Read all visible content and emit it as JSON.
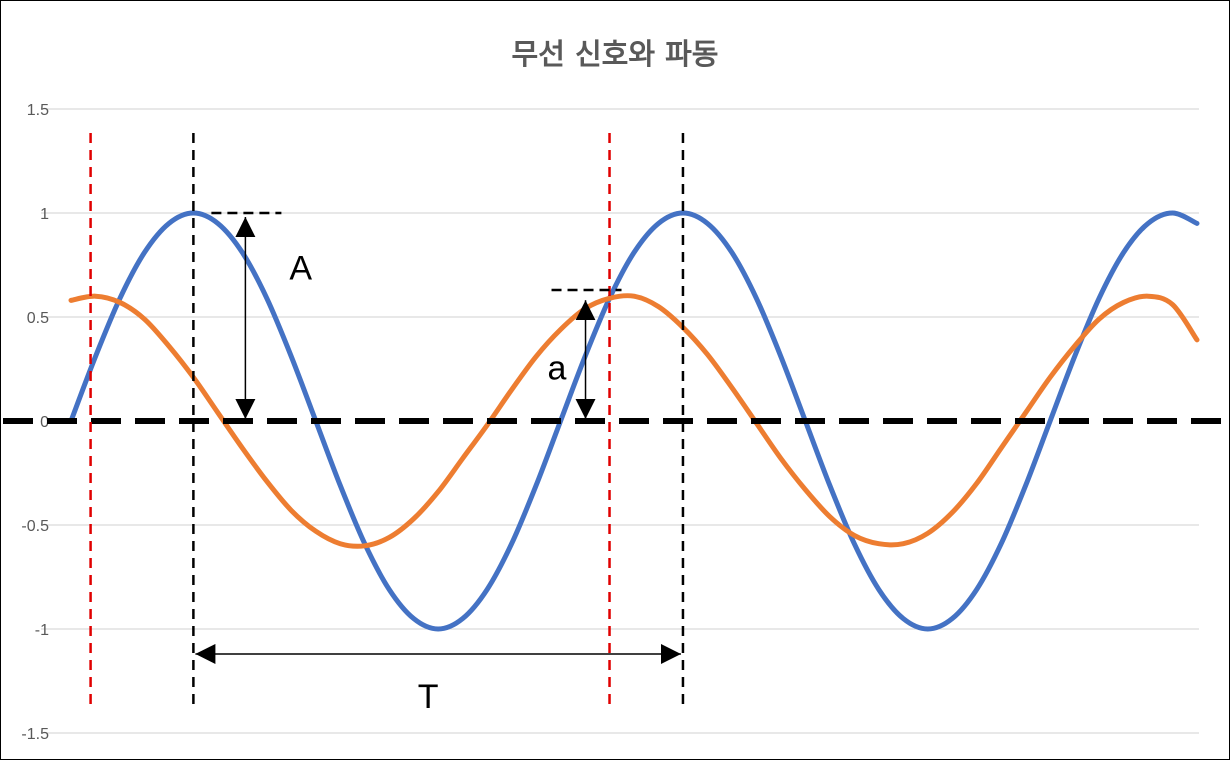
{
  "chart_data": {
    "type": "line",
    "title": "무선 신호와 파동",
    "xlabel": "",
    "ylabel": "",
    "ylim": [
      -1.5,
      1.5
    ],
    "y_ticks": [
      "1.5",
      "1",
      "0.5",
      "0",
      "-0.5",
      "-1",
      "-1.5"
    ],
    "grid": true,
    "legend": "none",
    "x": [
      0,
      0.05,
      0.1,
      0.15,
      0.2,
      0.25,
      0.3,
      0.35,
      0.4,
      0.45,
      0.5,
      0.55,
      0.6,
      0.65,
      0.7,
      0.75,
      0.8,
      0.85,
      0.9,
      0.95,
      1.0,
      1.05,
      1.1,
      1.15,
      1.2,
      1.25,
      1.3,
      1.35,
      1.4,
      1.45,
      1.5,
      1.55,
      1.6,
      1.65,
      1.7,
      1.75,
      1.8,
      1.85,
      1.9,
      1.95,
      2.0,
      2.05,
      2.1,
      2.15,
      2.2,
      2.25,
      2.3
    ],
    "series": [
      {
        "color": "#4472C4",
        "values": [
          0,
          0.31,
          0.59,
          0.81,
          0.95,
          1,
          0.95,
          0.81,
          0.59,
          0.31,
          0,
          -0.31,
          -0.59,
          -0.81,
          -0.95,
          -1,
          -0.95,
          -0.81,
          -0.59,
          -0.31,
          0,
          0.31,
          0.59,
          0.81,
          0.95,
          1,
          0.95,
          0.81,
          0.59,
          0.31,
          0,
          -0.31,
          -0.59,
          -0.81,
          -0.95,
          -1,
          -0.95,
          -0.81,
          -0.59,
          -0.31,
          0,
          0.31,
          0.59,
          0.81,
          0.95,
          1,
          0.95
        ]
      },
      {
        "color": "#ED7D31",
        "values": [
          0.58,
          0.6,
          0.57,
          0.49,
          0.36,
          0.21,
          0.04,
          -0.13,
          -0.29,
          -0.43,
          -0.53,
          -0.59,
          -0.6,
          -0.56,
          -0.47,
          -0.34,
          -0.18,
          -0.02,
          0.15,
          0.31,
          0.44,
          0.54,
          0.59,
          0.6,
          0.55,
          0.45,
          0.32,
          0.16,
          -0.01,
          -0.18,
          -0.33,
          -0.46,
          -0.55,
          -0.59,
          -0.59,
          -0.54,
          -0.44,
          -0.3,
          -0.13,
          0.04,
          0.21,
          0.36,
          0.49,
          0.57,
          0.6,
          0.56,
          0.39
        ]
      }
    ],
    "annotations": {
      "amplitude_label": "A",
      "small_amplitude_label": "a",
      "period_label": "T",
      "amplitude_value": 1,
      "small_amplitude_value": 0.6,
      "black_reference_x": [
        0.25,
        1.25
      ],
      "red_reference_x": [
        0.04,
        1.1
      ]
    }
  }
}
